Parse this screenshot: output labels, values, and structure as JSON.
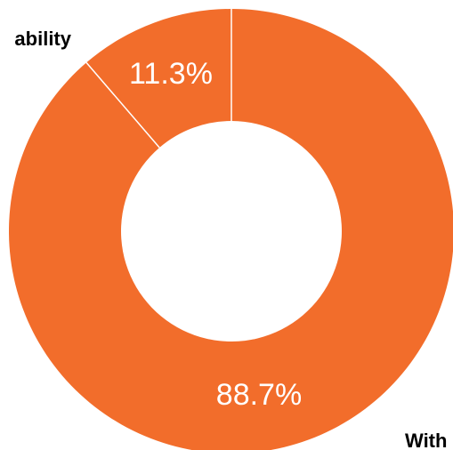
{
  "chart_data": {
    "type": "pie",
    "donut": true,
    "categories": [
      "ability",
      "With"
    ],
    "values": [
      11.3,
      88.7
    ],
    "data_labels": [
      "11.3%",
      "88.7%"
    ],
    "colors": [
      "#f26d2b",
      "#f26d2b"
    ],
    "separator_color": "#ffffff",
    "start": "top, clockwise from the small slice"
  }
}
